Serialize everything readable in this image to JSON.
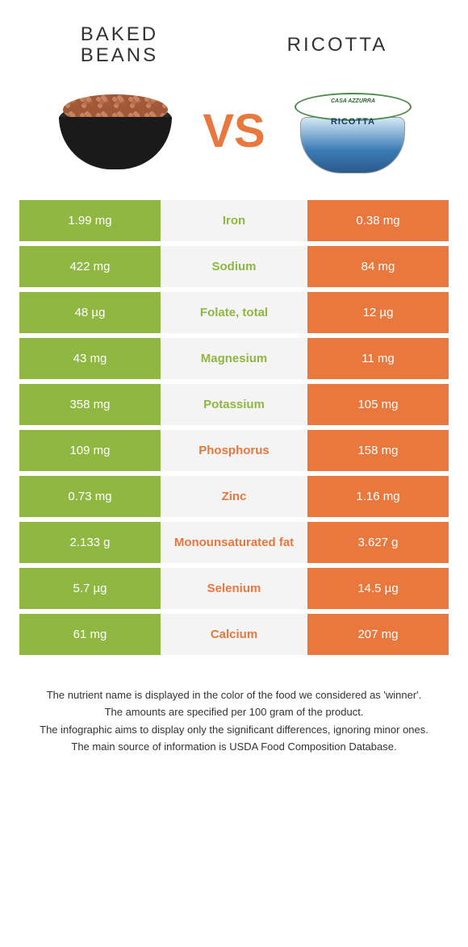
{
  "header": {
    "leftTitle": "BAKED BEANS",
    "rightTitle": "RICOTTA",
    "vs": "VS"
  },
  "colors": {
    "green": "#8fb742",
    "orange": "#e8783e",
    "midBg": "#f4f4f4"
  },
  "rows": [
    {
      "nutrient": "Iron",
      "left": "1.99 mg",
      "right": "0.38 mg",
      "winner": "green"
    },
    {
      "nutrient": "Sodium",
      "left": "422 mg",
      "right": "84 mg",
      "winner": "green"
    },
    {
      "nutrient": "Folate, total",
      "left": "48 µg",
      "right": "12 µg",
      "winner": "green"
    },
    {
      "nutrient": "Magnesium",
      "left": "43 mg",
      "right": "11 mg",
      "winner": "green"
    },
    {
      "nutrient": "Potassium",
      "left": "358 mg",
      "right": "105 mg",
      "winner": "green"
    },
    {
      "nutrient": "Phosphorus",
      "left": "109 mg",
      "right": "158 mg",
      "winner": "orange"
    },
    {
      "nutrient": "Zinc",
      "left": "0.73 mg",
      "right": "1.16 mg",
      "winner": "orange"
    },
    {
      "nutrient": "Monounsaturated fat",
      "left": "2.133 g",
      "right": "3.627 g",
      "winner": "orange"
    },
    {
      "nutrient": "Selenium",
      "left": "5.7 µg",
      "right": "14.5 µg",
      "winner": "orange"
    },
    {
      "nutrient": "Calcium",
      "left": "61 mg",
      "right": "207 mg",
      "winner": "orange"
    }
  ],
  "footer": {
    "line1": "The nutrient name is displayed in the color of the food we considered as 'winner'.",
    "line2": "The amounts are specified per 100 gram of the product.",
    "line3": "The infographic aims to display only the significant differences, ignoring minor ones.",
    "line4": "The main source of information is USDA Food Composition Database."
  },
  "tubBrand": "CASA AZZURRA",
  "tubLabel": "RICOTTA"
}
